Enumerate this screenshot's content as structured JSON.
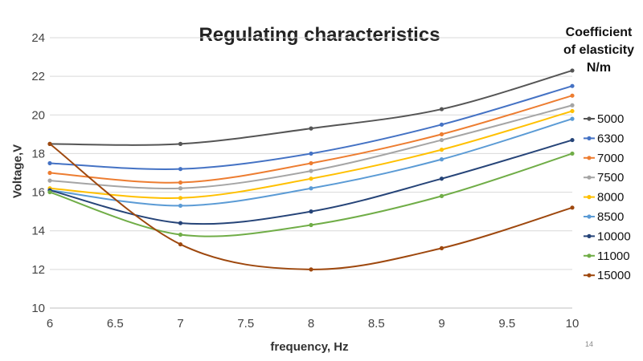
{
  "chart_data": {
    "type": "line",
    "title": "Regulating characteristics",
    "xlabel": "frequency, Hz",
    "ylabel": "Voltage,V",
    "x": [
      6,
      7,
      8,
      9,
      10
    ],
    "xlim": [
      6,
      10
    ],
    "ylim": [
      10,
      24
    ],
    "x_ticks": [
      "6",
      "6.5",
      "7",
      "7.5",
      "8",
      "8.5",
      "9",
      "9.5",
      "10"
    ],
    "y_ticks": [
      "10",
      "12",
      "14",
      "16",
      "18",
      "20",
      "22",
      "24"
    ],
    "grid": "horizontal",
    "legend_position": "right",
    "legend_title_lines": [
      "Coefficient",
      "of elasticity",
      "N/m"
    ],
    "series": [
      {
        "name": "5000",
        "color": "#555555",
        "values": [
          18.5,
          18.5,
          19.3,
          20.3,
          22.3
        ]
      },
      {
        "name": "6300",
        "color": "#4472C4",
        "values": [
          17.5,
          17.2,
          18.0,
          19.5,
          21.5
        ]
      },
      {
        "name": "7000",
        "color": "#ED7D31",
        "values": [
          17.0,
          16.5,
          17.5,
          19.0,
          21.0
        ]
      },
      {
        "name": "7500",
        "color": "#A5A5A5",
        "values": [
          16.6,
          16.2,
          17.1,
          18.7,
          20.5
        ]
      },
      {
        "name": "8000",
        "color": "#FFC000",
        "values": [
          16.2,
          15.7,
          16.7,
          18.2,
          20.2
        ]
      },
      {
        "name": "8500",
        "color": "#5B9BD5",
        "values": [
          16.1,
          15.3,
          16.2,
          17.7,
          19.8
        ]
      },
      {
        "name": "10000",
        "color": "#264478",
        "values": [
          16.1,
          14.4,
          15.0,
          16.7,
          18.7
        ]
      },
      {
        "name": "11000",
        "color": "#70AD47",
        "values": [
          16.0,
          13.8,
          14.3,
          15.8,
          18.0
        ]
      },
      {
        "name": "15000",
        "color": "#9E480E",
        "values": [
          18.5,
          13.3,
          12.0,
          13.1,
          15.2
        ]
      }
    ]
  },
  "page_number": "14"
}
